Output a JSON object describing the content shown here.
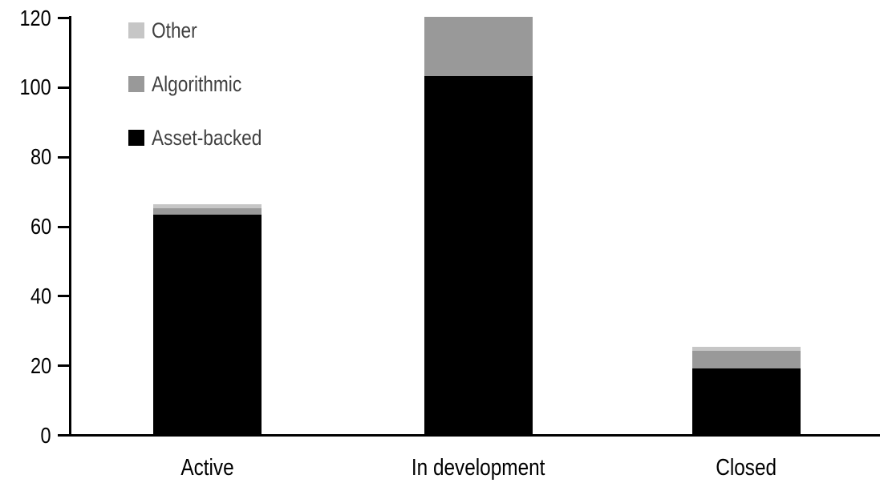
{
  "chart_data": {
    "type": "bar",
    "stacked": true,
    "title": "",
    "xlabel": "",
    "ylabel": "",
    "categories": [
      "Active",
      "In development",
      "Closed"
    ],
    "series": [
      {
        "name": "Asset-backed",
        "color": "#000000",
        "values": [
          63,
          103,
          19
        ]
      },
      {
        "name": "Algorithmic",
        "color": "#999999",
        "values": [
          2,
          17,
          5
        ]
      },
      {
        "name": "Other",
        "color": "#c6c6c6",
        "values": [
          1,
          0,
          1
        ]
      }
    ],
    "stack_totals": [
      66,
      120,
      25
    ],
    "stack_order_bottom_to_top": [
      "Asset-backed",
      "Algorithmic",
      "Other"
    ],
    "legend_order_top_to_bottom": [
      "Other",
      "Algorithmic",
      "Asset-backed"
    ],
    "legend_position": "top-left",
    "ylim": [
      0,
      120
    ],
    "yticks": [
      0,
      20,
      40,
      60,
      80,
      100,
      120
    ],
    "grid": false
  },
  "colors": {
    "axis": "#000000",
    "tick_label_text": "#000000",
    "category_label_text": "#000000",
    "legend_text": "#404040",
    "background": "#ffffff"
  }
}
